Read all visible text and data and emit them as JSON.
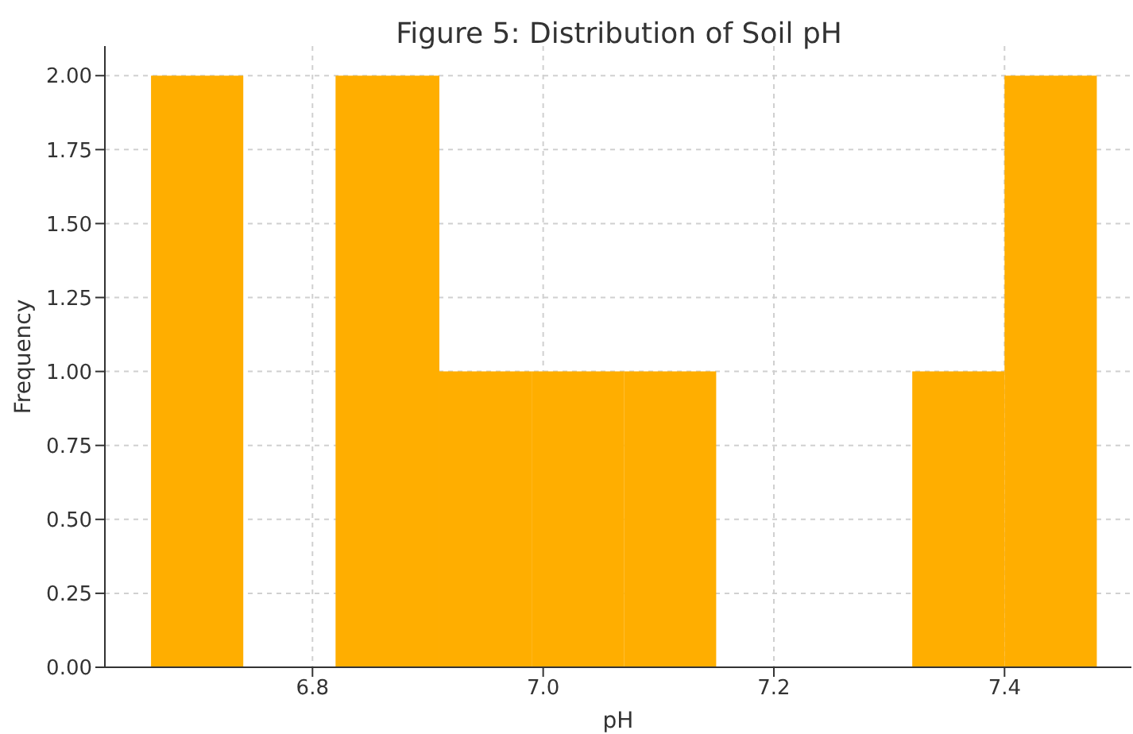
{
  "chart_data": {
    "type": "histogram",
    "title": "Figure 5: Distribution of Soil pH",
    "xlabel": "pH",
    "ylabel": "Frequency",
    "bins": [
      6.66,
      6.74,
      6.82,
      6.91,
      6.99,
      7.07,
      7.15,
      7.32,
      7.4,
      7.48
    ],
    "values": [
      2,
      0,
      2,
      1,
      1,
      1,
      0,
      1,
      2
    ],
    "color": "#ffae00",
    "xlim": [
      6.62,
      7.51
    ],
    "xticks": [
      6.8,
      {
        "value": 7.0,
        "label": "7.0"
      },
      7.2,
      7.4
    ],
    "ylim": [
      0,
      2.1
    ],
    "yticks": [
      {
        "value": 0,
        "label": "0.00"
      },
      {
        "value": 0.25,
        "label": "0.25"
      },
      {
        "value": 0.5,
        "label": "0.50"
      },
      {
        "value": 0.75,
        "label": "0.75"
      },
      {
        "value": 1,
        "label": "1.00"
      },
      {
        "value": 1.25,
        "label": "1.25"
      },
      {
        "value": 1.5,
        "label": "1.50"
      },
      {
        "value": 1.75,
        "label": "1.75"
      },
      {
        "value": 2,
        "label": "2.00"
      }
    ],
    "grid": true
  }
}
